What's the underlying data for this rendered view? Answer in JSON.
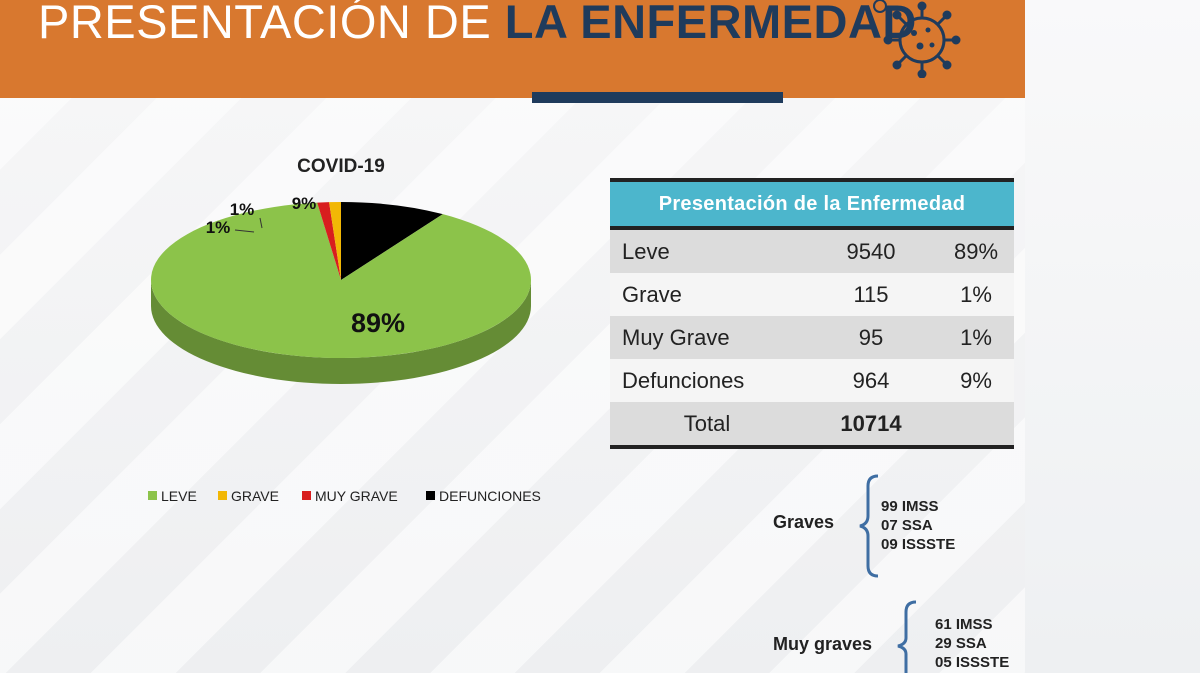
{
  "header": {
    "title_regular": "PRESENTACIÓN DE ",
    "title_bold": "LA ENFERMEDAD"
  },
  "colors": {
    "banner": "#d8782f",
    "navy": "#1f3b5c",
    "table_header": "#4cb6cc"
  },
  "icons": {
    "banner_icon": "virus-icon"
  },
  "chart_data": {
    "type": "pie",
    "title": "COVID-19",
    "style": "3d",
    "categories": [
      "LEVE",
      "GRAVE",
      "MUY GRAVE",
      "DEFUNCIONES"
    ],
    "values": [
      89,
      1,
      1,
      9
    ],
    "labels": [
      "89%",
      "1%",
      "1%",
      "9%"
    ],
    "colors": [
      "#8cc34a",
      "#f2b705",
      "#d81e1e",
      "#000000"
    ],
    "legend_position": "bottom"
  },
  "table": {
    "header": "Presentación de la Enfermedad",
    "rows": [
      {
        "name": "Leve",
        "count": "9540",
        "pct": "89%"
      },
      {
        "name": "Grave",
        "count": "115",
        "pct": "1%"
      },
      {
        "name": "Muy Grave",
        "count": "95",
        "pct": "1%"
      },
      {
        "name": "Defunciones",
        "count": "964",
        "pct": "9%"
      }
    ],
    "total_label": "Total",
    "total_value": "10714"
  },
  "groups": [
    {
      "label": "Graves",
      "items": [
        "99 IMSS",
        "07 SSA",
        "09 ISSSTE"
      ]
    },
    {
      "label": "Muy graves",
      "items": [
        "61 IMSS",
        "29 SSA",
        "05 ISSSTE"
      ]
    }
  ]
}
